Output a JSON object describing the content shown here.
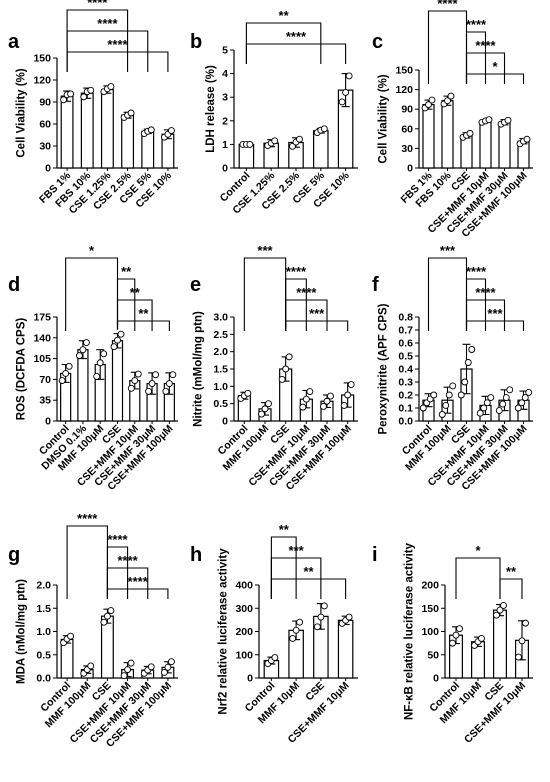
{
  "chart_data": [
    {
      "panel": "a",
      "type": "bar",
      "ylabel": "Cell Viability (%)",
      "ylim": [
        0,
        150
      ],
      "yticks": [
        0,
        30,
        60,
        90,
        120,
        150
      ],
      "categories": [
        "FBS 1%",
        "FBS 10%",
        "CSE 1.25%",
        "CSE 2.5%",
        "CSE 5%",
        "CSE 10%"
      ],
      "values": [
        98,
        102,
        107,
        72,
        50,
        46
      ],
      "errors": [
        7,
        7,
        5,
        4,
        3,
        6
      ],
      "points": [
        [
          93,
          100,
          101
        ],
        [
          97,
          104,
          106
        ],
        [
          104,
          108,
          111
        ],
        [
          69,
          72,
          75
        ],
        [
          47,
          50,
          52
        ],
        [
          42,
          46,
          51
        ]
      ],
      "significance": [
        {
          "from": 0,
          "to": 3,
          "label": "****"
        },
        {
          "from": 0,
          "to": 4,
          "label": "****"
        },
        {
          "from": 0,
          "to": 5,
          "label": "****"
        }
      ]
    },
    {
      "panel": "b",
      "type": "bar",
      "ylabel": "LDH release (%)",
      "ylim": [
        0,
        5
      ],
      "yticks": [
        0,
        1,
        2,
        3,
        4,
        5
      ],
      "categories": [
        "Control",
        "CSE 1.25%",
        "CSE 2.5%",
        "CSE 5%",
        "CSE 10%"
      ],
      "values": [
        1.0,
        1.05,
        1.08,
        1.58,
        3.3
      ],
      "errors": [
        0.03,
        0.15,
        0.2,
        0.1,
        0.7
      ],
      "points": [
        [
          1.0,
          1.0,
          1.0
        ],
        [
          0.95,
          1.05,
          1.15
        ],
        [
          0.92,
          1.1,
          1.22
        ],
        [
          1.5,
          1.6,
          1.66
        ],
        [
          2.8,
          3.2,
          3.9
        ]
      ],
      "significance": [
        {
          "from": 0,
          "to": 3,
          "label": "**"
        },
        {
          "from": 0,
          "to": 4,
          "label": "****"
        }
      ]
    },
    {
      "panel": "c",
      "type": "bar",
      "ylabel": "Cell Viability (%)",
      "ylim": [
        0,
        150
      ],
      "yticks": [
        0,
        30,
        60,
        90,
        120,
        150
      ],
      "categories": [
        "FBS 1%",
        "FBS 10%",
        "CSE",
        "CSE+MMF 10μM",
        "CSE+MMF 30μM",
        "CSE+MMF 100μM"
      ],
      "values": [
        97,
        103,
        50,
        72,
        70,
        41
      ],
      "errors": [
        7,
        7,
        4,
        2,
        4,
        4
      ],
      "points": [
        [
          92,
          97,
          104
        ],
        [
          98,
          103,
          110
        ],
        [
          47,
          50,
          53
        ],
        [
          70,
          72,
          74
        ],
        [
          67,
          70,
          73
        ],
        [
          37,
          41,
          44
        ]
      ],
      "significance": [
        {
          "from": 0,
          "to": 2,
          "label": "****"
        },
        {
          "from": 2,
          "to": 3,
          "label": "****"
        },
        {
          "from": 2,
          "to": 4,
          "label": "****"
        },
        {
          "from": 2,
          "to": 5,
          "label": "*"
        }
      ]
    },
    {
      "panel": "d",
      "type": "bar",
      "ylabel": "ROS (DCFDA CPS)",
      "ylim": [
        0,
        175
      ],
      "yticks": [
        0,
        35,
        70,
        105,
        140,
        175
      ],
      "categories": [
        "Control",
        "DMSO 0.1%",
        "MMF 100μM",
        "CSE",
        "CSE+MMF 10μM",
        "CSE+MMF 30μM",
        "CSE+MMF 100μM"
      ],
      "values": [
        80,
        120,
        95,
        135,
        68,
        63,
        63
      ],
      "errors": [
        15,
        15,
        25,
        12,
        14,
        18,
        18
      ],
      "points": [
        [
          68,
          80,
          92
        ],
        [
          110,
          120,
          132
        ],
        [
          75,
          98,
          113
        ],
        [
          125,
          136,
          146
        ],
        [
          55,
          68,
          79
        ],
        [
          50,
          63,
          78
        ],
        [
          50,
          63,
          78
        ]
      ],
      "significance": [
        {
          "from": 0,
          "to": 3,
          "label": "*"
        },
        {
          "from": 3,
          "to": 4,
          "label": "**"
        },
        {
          "from": 3,
          "to": 5,
          "label": "**"
        },
        {
          "from": 3,
          "to": 6,
          "label": "**"
        }
      ]
    },
    {
      "panel": "e",
      "type": "bar",
      "ylabel": "Nitrite (mMol/mg ptn)",
      "ylim": [
        0,
        3
      ],
      "yticks": [
        0,
        0.5,
        1,
        1.5,
        2,
        2.5,
        3
      ],
      "yticklabels": [
        "0",
        "0.5",
        "1.0",
        "1.5",
        "2.0",
        "2.5",
        "3.0"
      ],
      "categories": [
        "Control",
        "MMF 100μM",
        "CSE",
        "CSE+MMF 10μM",
        "CSE+MMF 30μM",
        "CSE+MMF 100μM"
      ],
      "values": [
        0.73,
        0.35,
        1.5,
        0.63,
        0.57,
        0.75
      ],
      "errors": [
        0.1,
        0.18,
        0.35,
        0.25,
        0.18,
        0.35
      ],
      "points": [
        [
          0.65,
          0.73,
          0.8
        ],
        [
          0.2,
          0.35,
          0.5
        ],
        [
          1.2,
          1.5,
          1.85
        ],
        [
          0.4,
          0.63,
          0.85
        ],
        [
          0.42,
          0.57,
          0.72
        ],
        [
          0.45,
          0.75,
          1.05
        ]
      ],
      "significance": [
        {
          "from": 0,
          "to": 2,
          "label": "***"
        },
        {
          "from": 2,
          "to": 3,
          "label": "****"
        },
        {
          "from": 2,
          "to": 4,
          "label": "****"
        },
        {
          "from": 2,
          "to": 5,
          "label": "***"
        }
      ]
    },
    {
      "panel": "f",
      "type": "bar",
      "ylabel": "Peroxynitrite (APF CPS)",
      "ylim": [
        0,
        0.8
      ],
      "yticks": [
        0,
        0.1,
        0.2,
        0.3,
        0.4,
        0.5,
        0.6,
        0.7,
        0.8
      ],
      "yticklabels": [
        "0.0",
        "0.1",
        "0.2",
        "0.3",
        "0.4",
        "0.5",
        "0.6",
        "0.7",
        "0.8"
      ],
      "categories": [
        "Control",
        "MMF 100μM",
        "CSE",
        "CSE+MMF 10μM",
        "CSE+MMF 30μM",
        "CSE+MMF 100μM"
      ],
      "values": [
        0.16,
        0.16,
        0.4,
        0.12,
        0.16,
        0.16
      ],
      "errors": [
        0.05,
        0.1,
        0.19,
        0.07,
        0.08,
        0.07
      ],
      "points": [
        [
          0.1,
          0.14,
          0.17,
          0.2
        ],
        [
          0.05,
          0.12,
          0.2,
          0.27
        ],
        [
          0.2,
          0.3,
          0.45,
          0.55
        ],
        [
          0.06,
          0.1,
          0.14,
          0.18
        ],
        [
          0.08,
          0.13,
          0.18,
          0.24
        ],
        [
          0.1,
          0.14,
          0.18,
          0.22
        ]
      ],
      "significance": [
        {
          "from": 0,
          "to": 2,
          "label": "***"
        },
        {
          "from": 2,
          "to": 3,
          "label": "****"
        },
        {
          "from": 2,
          "to": 4,
          "label": "****"
        },
        {
          "from": 2,
          "to": 5,
          "label": "***"
        }
      ]
    },
    {
      "panel": "g",
      "type": "bar",
      "ylabel": "MDA (nMol/mg ptn)",
      "ylim": [
        0,
        2
      ],
      "yticks": [
        0,
        0.5,
        1,
        1.5,
        2
      ],
      "yticklabels": [
        "0.0",
        "0.5",
        "1.0",
        "1.5",
        "2.0"
      ],
      "categories": [
        "Control",
        "MMF 100μM",
        "CSE",
        "CSE+MMF 10μM",
        "CSE+MMF 30μM",
        "CSE+MMF 100μM"
      ],
      "values": [
        0.83,
        0.18,
        1.33,
        0.18,
        0.17,
        0.23
      ],
      "errors": [
        0.08,
        0.08,
        0.15,
        0.15,
        0.08,
        0.12
      ],
      "points": [
        [
          0.76,
          0.84,
          0.9
        ],
        [
          0.1,
          0.18,
          0.26
        ],
        [
          1.2,
          1.33,
          1.45
        ],
        [
          0.05,
          0.18,
          0.32
        ],
        [
          0.1,
          0.17,
          0.24
        ],
        [
          0.12,
          0.23,
          0.35
        ]
      ],
      "significance": [
        {
          "from": 0,
          "to": 2,
          "label": "****"
        },
        {
          "from": 2,
          "to": 3,
          "label": "****"
        },
        {
          "from": 2,
          "to": 4,
          "label": "****"
        },
        {
          "from": 2,
          "to": 5,
          "label": "****"
        }
      ]
    },
    {
      "panel": "h",
      "type": "bar",
      "ylabel": "Nrf2 relative luciferase activity",
      "ylim": [
        0,
        400
      ],
      "yticks": [
        0,
        100,
        200,
        300,
        400
      ],
      "categories": [
        "Control",
        "MMF 10μM",
        "CSE",
        "CSE+MMF 10μM"
      ],
      "values": [
        75,
        205,
        265,
        248
      ],
      "errors": [
        15,
        40,
        55,
        18
      ],
      "points": [
        [
          62,
          75,
          88
        ],
        [
          170,
          205,
          240
        ],
        [
          220,
          262,
          310
        ],
        [
          235,
          248,
          262
        ]
      ],
      "significance": [
        {
          "from": 0,
          "to": 1,
          "label": "**"
        },
        {
          "from": 0,
          "to": 2,
          "label": "***"
        },
        {
          "from": 0,
          "to": 3,
          "label": "**"
        }
      ]
    },
    {
      "panel": "i",
      "type": "bar",
      "ylabel": "NF-κB relative luciferase activity",
      "ylim": [
        0,
        200
      ],
      "yticks": [
        0,
        50,
        100,
        150,
        200
      ],
      "categories": [
        "Control",
        "MMF 10μM",
        "CSE",
        "CSE+MMF 10μM"
      ],
      "values": [
        92,
        78,
        146,
        81
      ],
      "errors": [
        18,
        10,
        12,
        42
      ],
      "points": [
        [
          75,
          92,
          106
        ],
        [
          70,
          78,
          85
        ],
        [
          135,
          146,
          156
        ],
        [
          45,
          80,
          118
        ]
      ],
      "significance": [
        {
          "from": 0,
          "to": 2,
          "label": "*"
        },
        {
          "from": 2,
          "to": 3,
          "label": "**"
        }
      ]
    }
  ]
}
